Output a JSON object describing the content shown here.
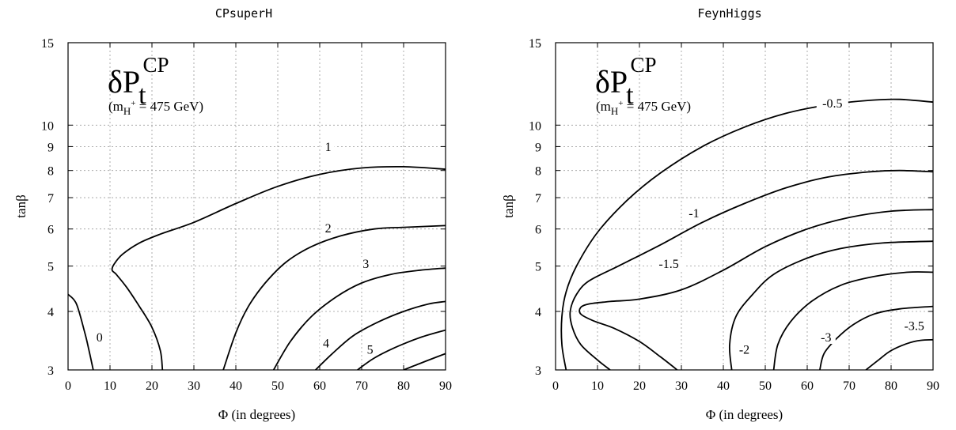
{
  "chart_data": [
    {
      "type": "line",
      "title": "CPsuperH",
      "xlabel": "Φ (in degrees)",
      "ylabel": "tanβ",
      "xlim": [
        0,
        90
      ],
      "ylim": [
        3,
        15
      ],
      "yscale": "log",
      "grid": true,
      "xticks": [
        0,
        10,
        20,
        30,
        40,
        50,
        60,
        70,
        80,
        90
      ],
      "yticks": [
        3,
        4,
        5,
        6,
        7,
        8,
        9,
        10,
        15
      ],
      "annotation": {
        "symbol": "δP",
        "sub": "t",
        "sup": "CP",
        "mass_prefix": "(m",
        "mass_sub": "H",
        "mass_sup": "+",
        "mass_suffix": " = 475 GeV)"
      },
      "contours": [
        {
          "level": "0",
          "label_at": [
            7.5,
            3.45
          ],
          "points": [
            [
              0,
              4.35
            ],
            [
              2,
              4.15
            ],
            [
              4,
              3.6
            ],
            [
              5,
              3.3
            ],
            [
              6,
              3.0
            ]
          ]
        },
        {
          "level": "1",
          "label_at": [
            62,
            8.8
          ],
          "points": [
            [
              22.5,
              3.0
            ],
            [
              22,
              3.3
            ],
            [
              20,
              3.7
            ],
            [
              17,
              4.1
            ],
            [
              14,
              4.5
            ],
            [
              11.5,
              4.8
            ],
            [
              10.5,
              4.9
            ],
            [
              11,
              5.05
            ],
            [
              13,
              5.3
            ],
            [
              17,
              5.6
            ],
            [
              22,
              5.85
            ],
            [
              30,
              6.2
            ],
            [
              40,
              6.8
            ],
            [
              50,
              7.4
            ],
            [
              60,
              7.85
            ],
            [
              70,
              8.1
            ],
            [
              80,
              8.15
            ],
            [
              90,
              8.05
            ]
          ]
        },
        {
          "level": "2",
          "label_at": [
            62,
            5.9
          ],
          "points": [
            [
              37,
              3.0
            ],
            [
              40,
              3.6
            ],
            [
              43,
              4.1
            ],
            [
              47,
              4.6
            ],
            [
              52,
              5.1
            ],
            [
              58,
              5.5
            ],
            [
              65,
              5.8
            ],
            [
              73,
              6.0
            ],
            [
              80,
              6.05
            ],
            [
              90,
              6.1
            ]
          ]
        },
        {
          "level": "3",
          "label_at": [
            71,
            4.95
          ],
          "points": [
            [
              49,
              3.0
            ],
            [
              53,
              3.45
            ],
            [
              58,
              3.9
            ],
            [
              64,
              4.3
            ],
            [
              70,
              4.6
            ],
            [
              77,
              4.8
            ],
            [
              84,
              4.9
            ],
            [
              90,
              4.95
            ]
          ]
        },
        {
          "level": "4",
          "label_at": [
            61.5,
            3.35
          ],
          "points": [
            [
              59,
              3.0
            ],
            [
              63,
              3.25
            ],
            [
              68,
              3.55
            ],
            [
              74,
              3.8
            ],
            [
              80,
              4.0
            ],
            [
              86,
              4.15
            ],
            [
              90,
              4.2
            ]
          ]
        },
        {
          "level": "5",
          "label_at": [
            72,
            3.25
          ],
          "points": [
            [
              69,
              3.0
            ],
            [
              73,
              3.18
            ],
            [
              78,
              3.35
            ],
            [
              84,
              3.52
            ],
            [
              90,
              3.65
            ]
          ]
        },
        {
          "level": "",
          "label_at": null,
          "points": [
            [
              80,
              3.0
            ],
            [
              84,
              3.1
            ],
            [
              88,
              3.2
            ],
            [
              90,
              3.25
            ]
          ]
        }
      ]
    },
    {
      "type": "line",
      "title": "FeynHiggs",
      "xlabel": "Φ (in degrees)",
      "ylabel": "tanβ",
      "xlim": [
        0,
        90
      ],
      "ylim": [
        3,
        15
      ],
      "yscale": "log",
      "grid": true,
      "xticks": [
        0,
        10,
        20,
        30,
        40,
        50,
        60,
        70,
        80,
        90
      ],
      "yticks": [
        3,
        4,
        5,
        6,
        7,
        8,
        9,
        10,
        15
      ],
      "annotation": {
        "symbol": "δP",
        "sub": "t",
        "sup": "CP",
        "mass_prefix": "(m",
        "mass_sub": "H",
        "mass_sup": "+",
        "mass_suffix": " = 475 GeV)"
      },
      "contours": [
        {
          "level": "-0.5",
          "label_at": [
            66,
            10.9
          ],
          "points": [
            [
              2.5,
              3.0
            ],
            [
              1.5,
              3.4
            ],
            [
              1.5,
              3.9
            ],
            [
              2.5,
              4.4
            ],
            [
              5,
              5.0
            ],
            [
              10,
              5.9
            ],
            [
              17,
              6.9
            ],
            [
              25,
              7.9
            ],
            [
              35,
              9.0
            ],
            [
              45,
              9.9
            ],
            [
              55,
              10.6
            ],
            [
              65,
              11.05
            ],
            [
              75,
              11.3
            ],
            [
              82,
              11.35
            ],
            [
              90,
              11.2
            ]
          ]
        },
        {
          "level": "-1",
          "label_at": [
            33,
            6.35
          ],
          "points": [
            [
              13,
              3.0
            ],
            [
              10,
              3.15
            ],
            [
              6,
              3.4
            ],
            [
              4,
              3.7
            ],
            [
              3.5,
              4.0
            ],
            [
              5,
              4.35
            ],
            [
              8,
              4.65
            ],
            [
              15,
              5.0
            ],
            [
              25,
              5.55
            ],
            [
              35,
              6.2
            ],
            [
              45,
              6.8
            ],
            [
              55,
              7.35
            ],
            [
              65,
              7.75
            ],
            [
              75,
              7.95
            ],
            [
              82,
              8.0
            ],
            [
              90,
              7.95
            ]
          ]
        },
        {
          "level": "-1.5",
          "label_at": [
            27,
            4.95
          ],
          "points": [
            [
              29,
              3.0
            ],
            [
              25,
              3.2
            ],
            [
              20,
              3.45
            ],
            [
              14,
              3.68
            ],
            [
              9,
              3.82
            ],
            [
              6,
              3.95
            ],
            [
              6,
              4.08
            ],
            [
              8,
              4.15
            ],
            [
              13,
              4.2
            ],
            [
              20,
              4.25
            ],
            [
              30,
              4.45
            ],
            [
              40,
              4.9
            ],
            [
              50,
              5.5
            ],
            [
              60,
              6.0
            ],
            [
              70,
              6.35
            ],
            [
              80,
              6.55
            ],
            [
              90,
              6.6
            ]
          ]
        },
        {
          "level": "-2",
          "label_at": [
            45,
            3.25
          ],
          "points": [
            [
              42,
              3.0
            ],
            [
              41.5,
              3.4
            ],
            [
              43,
              3.9
            ],
            [
              47,
              4.35
            ],
            [
              52,
              4.8
            ],
            [
              60,
              5.2
            ],
            [
              68,
              5.45
            ],
            [
              78,
              5.6
            ],
            [
              90,
              5.65
            ]
          ]
        },
        {
          "level": "",
          "label_at": null,
          "points": [
            [
              52,
              3.0
            ],
            [
              53,
              3.4
            ],
            [
              56,
              3.8
            ],
            [
              61,
              4.2
            ],
            [
              68,
              4.55
            ],
            [
              76,
              4.75
            ],
            [
              84,
              4.85
            ],
            [
              90,
              4.85
            ]
          ]
        },
        {
          "level": "-3",
          "label_at": [
            64.5,
            3.45
          ],
          "points": [
            [
              63,
              3.0
            ],
            [
              64,
              3.25
            ],
            [
              67,
              3.5
            ],
            [
              71,
              3.75
            ],
            [
              76,
              3.95
            ],
            [
              82,
              4.05
            ],
            [
              90,
              4.1
            ]
          ]
        },
        {
          "level": "-3.5",
          "label_at": [
            85.5,
            3.65
          ],
          "points": [
            [
              74,
              3.0
            ],
            [
              77,
              3.15
            ],
            [
              80,
              3.3
            ],
            [
              84,
              3.42
            ],
            [
              87,
              3.47
            ],
            [
              90,
              3.48
            ]
          ]
        }
      ]
    }
  ]
}
